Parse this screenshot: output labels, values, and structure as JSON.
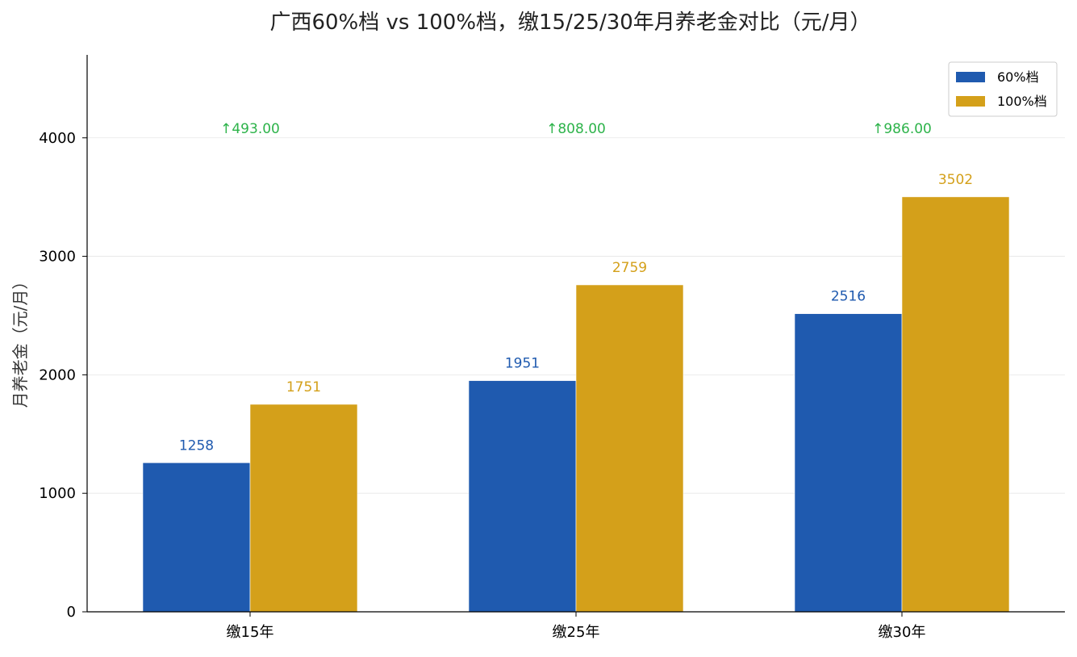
{
  "chart_data": {
    "type": "bar",
    "title": "广西60%档 vs 100%档，缴15/25/30年月养老金对比（元/月）",
    "xlabel": "",
    "ylabel": "月养老金（元/月）",
    "categories": [
      "缴15年",
      "缴25年",
      "缴30年"
    ],
    "series": [
      {
        "name": "60%档",
        "values": [
          1258,
          1951,
          2516
        ],
        "color": "#1f5aaf"
      },
      {
        "name": "100%档",
        "values": [
          1751,
          2759,
          3502
        ],
        "color": "#d4a01a"
      }
    ],
    "differences": [
      "↑493.00",
      "↑808.00",
      "↑986.00"
    ],
    "difference_color": "#2db34a",
    "ylim": [
      0,
      4700
    ],
    "yticks": [
      0,
      1000,
      2000,
      3000,
      4000
    ],
    "grid": true,
    "legend_position": "top-right"
  }
}
